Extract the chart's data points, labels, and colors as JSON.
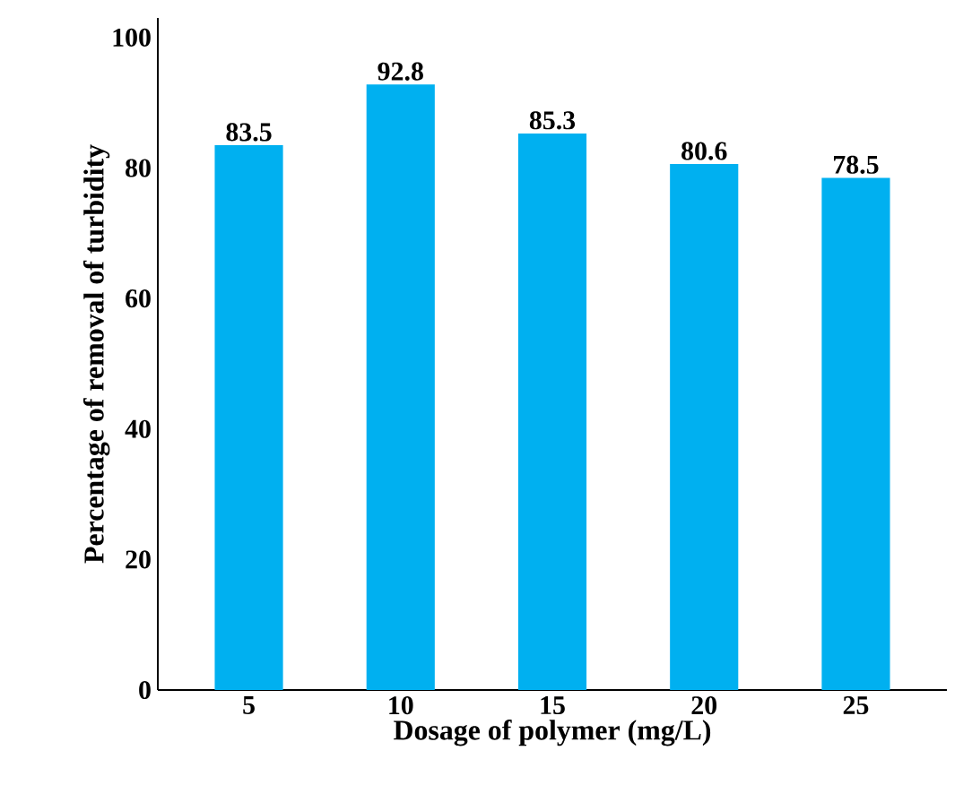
{
  "chart_data": {
    "type": "bar",
    "xlabel": "Dosage of polymer (mg/L)",
    "ylabel": "Percentage of removal of turbidity",
    "categories": [
      "5",
      "10",
      "15",
      "20",
      "25"
    ],
    "values": [
      83.5,
      92.8,
      85.3,
      80.6,
      78.5
    ],
    "color": "#00b0f0",
    "ylim": [
      0,
      103
    ],
    "yticks": [
      0,
      20,
      40,
      60,
      80,
      100
    ],
    "data_labels": true
  }
}
